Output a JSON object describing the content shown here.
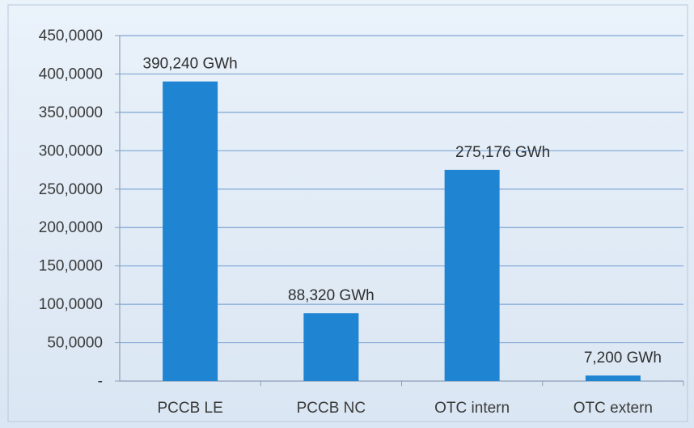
{
  "chart_data": {
    "type": "bar",
    "categories": [
      "PCCB LE",
      "PCCB NC",
      "OTC intern",
      "OTC extern"
    ],
    "values": [
      390.24,
      88.32,
      275.176,
      7.2
    ],
    "data_labels": [
      "390,240 GWh",
      "88,320 GWh",
      "275,176 GWh",
      "7,200 GWh"
    ],
    "y_tick_labels": [
      "-",
      "50,0000",
      "100,0000",
      "150,0000",
      "200,0000",
      "250,0000",
      "300,0000",
      "350,0000",
      "400,0000",
      "450,0000"
    ],
    "ylim": [
      0,
      450
    ],
    "y_tick_step": 50,
    "grid": true,
    "title": "",
    "xlabel": "",
    "ylabel": "",
    "colors": {
      "bar": "#1f84d2",
      "gridline": "#7fa6d6",
      "axis": "#8aa0b8"
    }
  }
}
